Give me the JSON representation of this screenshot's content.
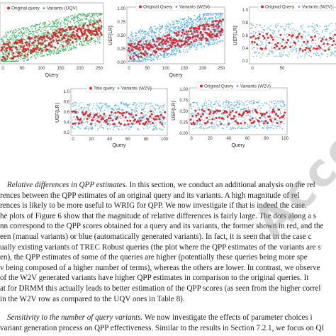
{
  "colors": {
    "original": "#e0262b",
    "manual": "#37a85a",
    "auto": "#4aa8dc"
  },
  "figures": [
    {
      "id": "uqv",
      "legend": [
        "Original query",
        "Variants (UQV)"
      ],
      "variants_color": "manual",
      "yticks": [],
      "xticks": [
        "0",
        "50",
        "100",
        "150",
        "200",
        "250"
      ],
      "xlabel": "Query",
      "ylabel": ""
    },
    {
      "id": "w2v-top",
      "legend": [
        "Original Query",
        "Variants (W2V)"
      ],
      "variants_color": "auto",
      "yticks": [
        "1.00",
        "0.75",
        "0.50",
        "0.25",
        "0.00"
      ],
      "xticks": [
        "0",
        "50",
        "100",
        "150",
        "200",
        "250"
      ],
      "xlabel": "Query",
      "ylabel": "UEF(LR)"
    },
    {
      "id": "w2v-right",
      "legend": [
        "Original Query",
        "Variants (W2V)"
      ],
      "variants_color": "auto",
      "yticks": [
        "1.0",
        "0.8",
        "0.6",
        "0.4",
        "0.2"
      ],
      "xticks": [
        "0",
        "50"
      ],
      "xlabel": "",
      "ylabel": "UEF(LR)"
    },
    {
      "id": "title-w2v",
      "legend": [
        "Title query",
        "Variants (W2V)"
      ],
      "variants_color": "auto",
      "yticks": [
        "1.0",
        "0.8",
        "0.6",
        "0.4",
        "0.2"
      ],
      "xticks": [
        "0",
        "20",
        "40",
        "60",
        "80",
        "100"
      ],
      "xlabel": "Query",
      "ylabel": "UEF(LR)"
    },
    {
      "id": "w2v-bottom",
      "legend": [
        "Original Query",
        "Variants (W2V)"
      ],
      "variants_color": "auto",
      "yticks": [
        "1.00",
        "0.75",
        "0.50",
        "0.25",
        "0.00"
      ],
      "xticks": [
        "0",
        "20",
        "40",
        "60",
        "80",
        "100"
      ],
      "xlabel": "Query",
      "ylabel": "UEF(LR)"
    }
  ],
  "paragraph1": [
    {
      "lead": "Relative differences in QPP estimates.",
      "text": " In this section, we conduct an additional analysis on the rel"
    },
    {
      "text": "rences between the QPP estimates of an original query and its variants. A high magnitude of rel"
    },
    {
      "text": "rences is likely to be more useful to WRIG for QPP. We now investigate if that is indeed the case."
    },
    {
      "text": "he plots of Figure 6 show that the magnitude of relative differences is fairly large. The dots along a s"
    },
    {
      "text": "nn correspond to the QPP scores obtained for a query and its variants, the former shown in red, and the"
    },
    {
      "text": "een (manual variants) or blue (automatically generated variants). In fact, it is seen that in the case c"
    },
    {
      "text": "ually existing variants of TREC Robust queries (the plot where the QPP estimates of the variants are s"
    },
    {
      "text": "en), the QPP estimates of some of the queries are higher (potentially these queries being more spe"
    },
    {
      "text": "v being composed of a higher number of terms), whereas the others are lower. In contrast, we observe"
    },
    {
      "text": "of the W2V generated variants have higher QPP estimates in comparison to the original queries. It"
    },
    {
      "text": "at for DRMM this actually leads to better estimation of the QPP scores (as seen from the higher correl"
    },
    {
      "text": "in the W2V row as compared to the UQV ones in Table 8)."
    }
  ],
  "paragraph2": [
    {
      "lead": "Sensitivity to the number of query variants.",
      "text": " We now investigate the effects of parameter choices i"
    },
    {
      "text": "variant generation process on QPP effectiveness. Similar to the results in Section 7.2.1, we focus on QI"
    }
  ],
  "watermark": "Accepted"
}
